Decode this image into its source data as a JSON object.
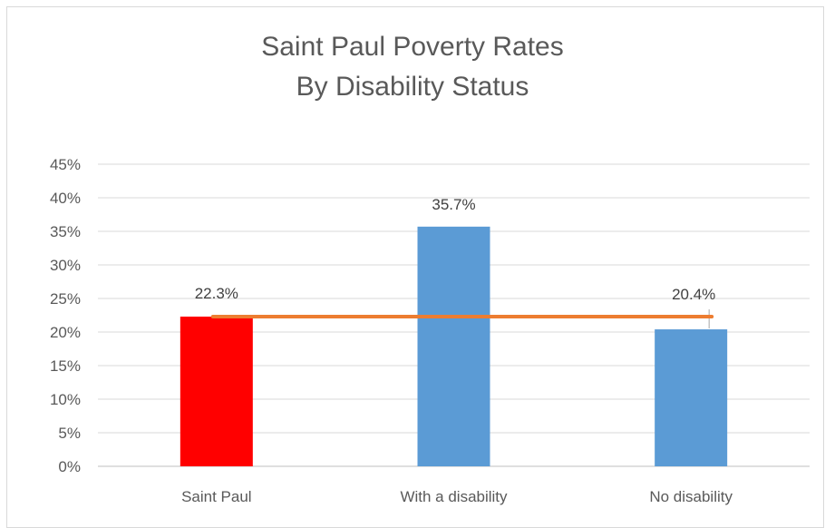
{
  "chart_data": {
    "type": "bar",
    "title_lines": [
      "Saint Paul Poverty Rates",
      "By Disability Status"
    ],
    "categories": [
      "Saint Paul",
      "With a disability",
      "No disability"
    ],
    "values": [
      22.3,
      35.7,
      20.4
    ],
    "value_labels": [
      "22.3%",
      "35.7%",
      "20.4%"
    ],
    "bar_colors": [
      "#ff0000",
      "#5b9bd5",
      "#5b9bd5"
    ],
    "reference_line": {
      "value": 22.3,
      "color": "#ed7d31"
    },
    "ylim": [
      0,
      45
    ],
    "y_ticks": [
      0,
      5,
      10,
      15,
      20,
      25,
      30,
      35,
      40,
      45
    ],
    "y_tick_labels": [
      "0%",
      "5%",
      "10%",
      "15%",
      "20%",
      "25%",
      "30%",
      "35%",
      "40%",
      "45%"
    ],
    "grid": true,
    "legend": "none",
    "xlabel": "",
    "ylabel": ""
  }
}
